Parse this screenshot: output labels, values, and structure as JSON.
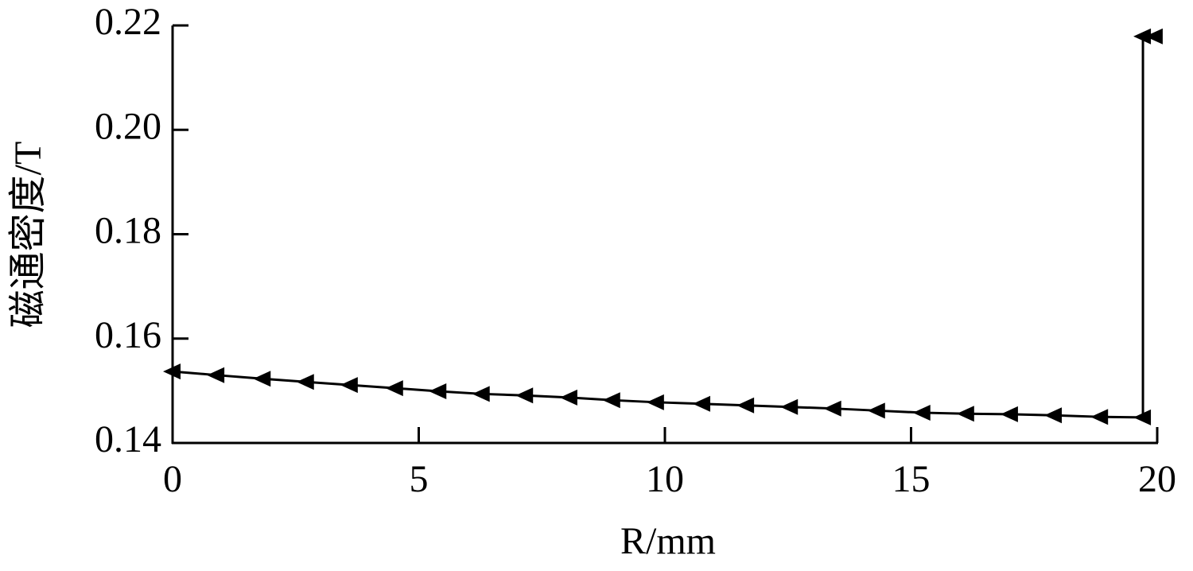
{
  "chart_data": {
    "type": "line",
    "x_label": "R/mm",
    "y_label": "磁通密度/T",
    "xlim": [
      0,
      20
    ],
    "xticks": [
      0,
      5,
      10,
      15,
      20
    ],
    "ylim": [
      0.14,
      0.22
    ],
    "yticks": [
      0.14,
      0.16,
      0.18,
      {
        "value": 0.2,
        "label": "0.20"
      },
      0.22
    ],
    "series": [
      {
        "color": "#000000",
        "x": [
          0,
          0.89,
          1.83,
          2.71,
          3.6,
          4.52,
          5.4,
          6.28,
          7.16,
          8.06,
          8.93,
          9.82,
          10.76,
          11.65,
          12.54,
          13.42,
          14.31,
          15.23,
          16.12,
          17.01,
          17.9,
          18.84,
          19.71,
          19.71,
          19.95
        ],
        "values": [
          0.1537,
          0.153,
          0.1523,
          0.1517,
          0.1511,
          0.1505,
          0.1499,
          0.1494,
          0.1491,
          0.1487,
          0.1482,
          0.1478,
          0.1475,
          0.1472,
          0.1469,
          0.1466,
          0.1462,
          0.1458,
          0.1456,
          0.1455,
          0.1453,
          0.145,
          0.1449,
          0.2179,
          0.2179
        ]
      }
    ]
  }
}
